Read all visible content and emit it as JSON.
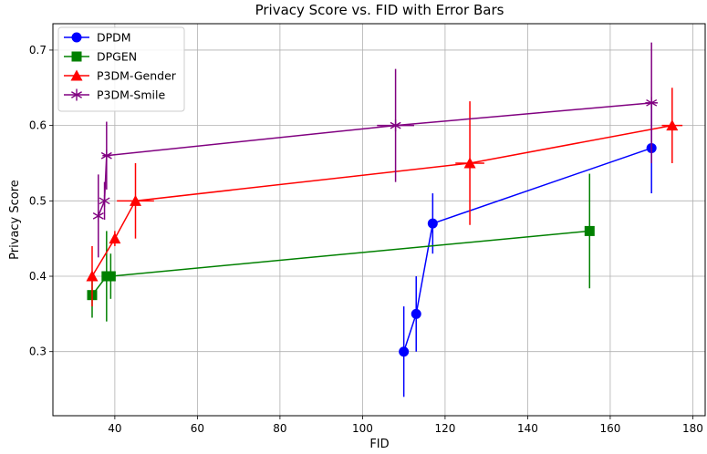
{
  "chart_data": {
    "type": "scatter",
    "title": "Privacy Score vs. FID with Error Bars",
    "xlabel": "FID",
    "ylabel": "Privacy Score",
    "xlim": [
      25,
      183
    ],
    "ylim": [
      0.215,
      0.735
    ],
    "xticks": [
      40,
      60,
      80,
      100,
      120,
      140,
      160,
      180
    ],
    "yticks": [
      0.3,
      0.4,
      0.5,
      0.6,
      0.7
    ],
    "grid": true,
    "legend_position": "top-left",
    "series": [
      {
        "name": "DPDM",
        "color": "#0000ff",
        "marker": "circle",
        "points": [
          {
            "x": 110,
            "y": 0.3,
            "xerr": 0,
            "yerr": 0.06
          },
          {
            "x": 113,
            "y": 0.35,
            "xerr": 0,
            "yerr": 0.05
          },
          {
            "x": 117,
            "y": 0.47,
            "xerr": 1,
            "yerr": 0.04
          },
          {
            "x": 170,
            "y": 0.57,
            "xerr": 1,
            "yerr": 0.06
          }
        ]
      },
      {
        "name": "DPGEN",
        "color": "#008000",
        "marker": "square",
        "points": [
          {
            "x": 34.5,
            "y": 0.375,
            "xerr": 0.5,
            "yerr": 0.03
          },
          {
            "x": 38,
            "y": 0.4,
            "xerr": 0,
            "yerr": 0.06
          },
          {
            "x": 39,
            "y": 0.4,
            "xerr": 0,
            "yerr": 0.03
          },
          {
            "x": 155,
            "y": 0.46,
            "xerr": 0,
            "yerr": 0.076
          }
        ]
      },
      {
        "name": "P3DM-Gender",
        "color": "#ff0000",
        "marker": "triangle",
        "points": [
          {
            "x": 34.5,
            "y": 0.4,
            "xerr": 0.5,
            "yerr": 0.04
          },
          {
            "x": 40,
            "y": 0.45,
            "xerr": 0,
            "yerr": 0.01
          },
          {
            "x": 45,
            "y": 0.5,
            "xerr": 4.5,
            "yerr": 0.05
          },
          {
            "x": 126,
            "y": 0.55,
            "xerr": 3.5,
            "yerr": 0.082
          },
          {
            "x": 175,
            "y": 0.6,
            "xerr": 2.5,
            "yerr": 0.05
          }
        ]
      },
      {
        "name": "P3DM-Smile",
        "color": "#800080",
        "marker": "star",
        "points": [
          {
            "x": 36,
            "y": 0.48,
            "xerr": 0,
            "yerr": 0.055
          },
          {
            "x": 37.5,
            "y": 0.5,
            "xerr": 0,
            "yerr": 0.025
          },
          {
            "x": 38,
            "y": 0.56,
            "xerr": 1,
            "yerr": 0.045
          },
          {
            "x": 108,
            "y": 0.6,
            "xerr": 4.5,
            "yerr": 0.075
          },
          {
            "x": 170,
            "y": 0.63,
            "xerr": 1.5,
            "yerr": 0.08
          }
        ]
      }
    ]
  }
}
